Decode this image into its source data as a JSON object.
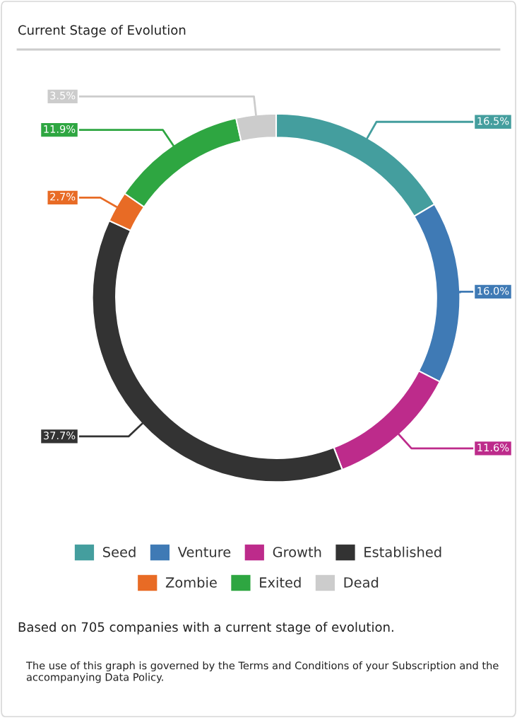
{
  "chart_data": {
    "type": "donut",
    "title": "Current Stage of Evolution",
    "categories": [
      "Seed",
      "Venture",
      "Growth",
      "Established",
      "Zombie",
      "Exited",
      "Dead"
    ],
    "values": [
      16.5,
      16.0,
      11.6,
      37.7,
      2.7,
      11.9,
      3.5
    ],
    "value_labels": [
      "16.5%",
      "16.0%",
      "11.6%",
      "37.7%",
      "2.7%",
      "11.9%",
      "3.5%"
    ],
    "colors": [
      "#449e9e",
      "#3f7ab5",
      "#bd2b8b",
      "#333333",
      "#e86b25",
      "#2ea641",
      "#cccccc"
    ],
    "legend": "bottom",
    "annotations": [
      "Based on 705 companies with a current stage of evolution.",
      "The use of this graph is governed by the Terms and Conditions of your Subscription and the accompanying Data Policy."
    ]
  }
}
